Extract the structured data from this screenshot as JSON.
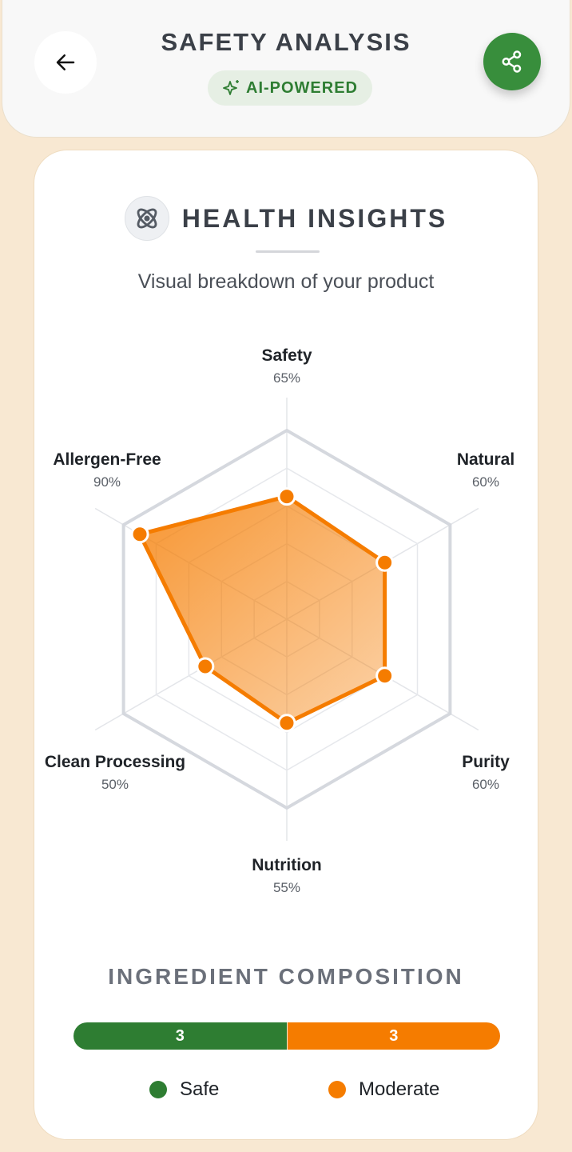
{
  "header": {
    "title": "SAFETY ANALYSIS",
    "badge": "AI-POWERED",
    "back_icon": "arrow-left-icon",
    "share_icon": "share-icon"
  },
  "card": {
    "title": "HEALTH INSIGHTS",
    "subtitle": "Visual breakdown of your product",
    "icon": "atom-icon"
  },
  "chart_data": {
    "type": "radar",
    "categories": [
      "Safety",
      "Natural",
      "Purity",
      "Nutrition",
      "Clean Processing",
      "Allergen-Free"
    ],
    "values": [
      65,
      60,
      60,
      55,
      50,
      90
    ],
    "value_labels": [
      "65%",
      "60%",
      "60%",
      "55%",
      "50%",
      "90%"
    ],
    "range": [
      0,
      100
    ],
    "grid_levels": 5,
    "color": "#f57c00"
  },
  "composition": {
    "title": "INGREDIENT COMPOSITION",
    "segments": [
      {
        "label": "Safe",
        "count": "3",
        "color": "#2e7d32"
      },
      {
        "label": "Moderate",
        "count": "3",
        "color": "#f57c00"
      }
    ]
  }
}
